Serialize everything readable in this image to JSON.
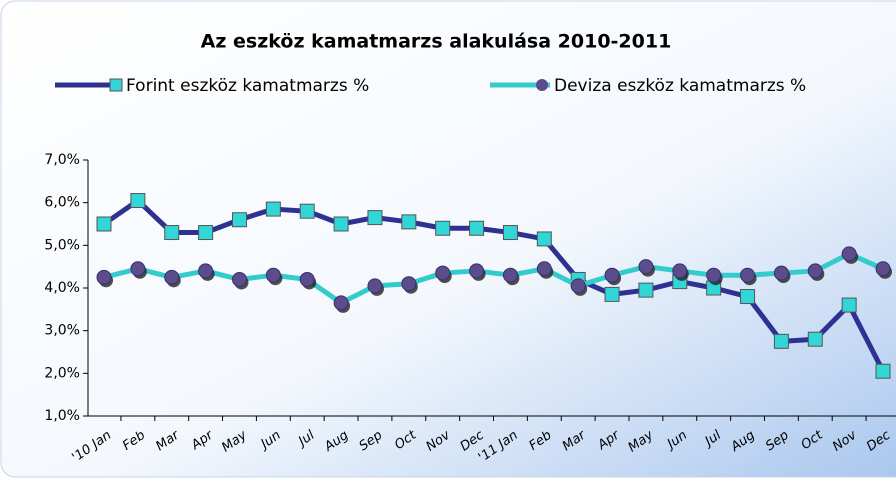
{
  "chart_data": {
    "type": "line",
    "title": "Az eszköz kamatmarzs alakulása 2010-2011",
    "categories": [
      "'10 Jan",
      "Feb",
      "Mar",
      "Apr",
      "May",
      "Jun",
      "Jul",
      "Aug",
      "Sep",
      "Oct",
      "Nov",
      "Dec",
      "'11 Jan",
      "Feb",
      "Mar",
      "Apr",
      "May",
      "Jun",
      "Jul",
      "Aug",
      "Sep",
      "Oct",
      "Nov",
      "Dec"
    ],
    "series": [
      {
        "name": "Forint eszköz kamatmarzs %",
        "color": "#2e3192",
        "marker": "square",
        "marker_color": "#33d6d6",
        "values": [
          5.5,
          6.05,
          5.3,
          5.3,
          5.6,
          5.85,
          5.8,
          5.5,
          5.65,
          5.55,
          5.4,
          5.4,
          5.3,
          5.15,
          4.2,
          3.85,
          3.95,
          4.15,
          4.0,
          3.8,
          2.75,
          2.8,
          3.6,
          2.05
        ]
      },
      {
        "name": "Deviza eszköz kamatmarzs %",
        "color": "#33cccc",
        "marker": "circle",
        "marker_color": "#5b4d8c",
        "values": [
          4.25,
          4.45,
          4.25,
          4.4,
          4.2,
          4.3,
          4.2,
          3.65,
          4.05,
          4.1,
          4.35,
          4.4,
          4.3,
          4.45,
          4.05,
          4.3,
          4.5,
          4.4,
          4.3,
          4.3,
          4.35,
          4.4,
          4.8,
          4.45
        ]
      }
    ],
    "ylim": [
      1,
      7
    ],
    "yticks": [
      {
        "value": 1,
        "label": "1,0%"
      },
      {
        "value": 2,
        "label": "2,0%"
      },
      {
        "value": 3,
        "label": "3,0%"
      },
      {
        "value": 4,
        "label": "4,0%"
      },
      {
        "value": 5,
        "label": "5,0%"
      },
      {
        "value": 6,
        "label": "6,0%"
      },
      {
        "value": 7,
        "label": "7,0%"
      }
    ],
    "legend": "top"
  }
}
